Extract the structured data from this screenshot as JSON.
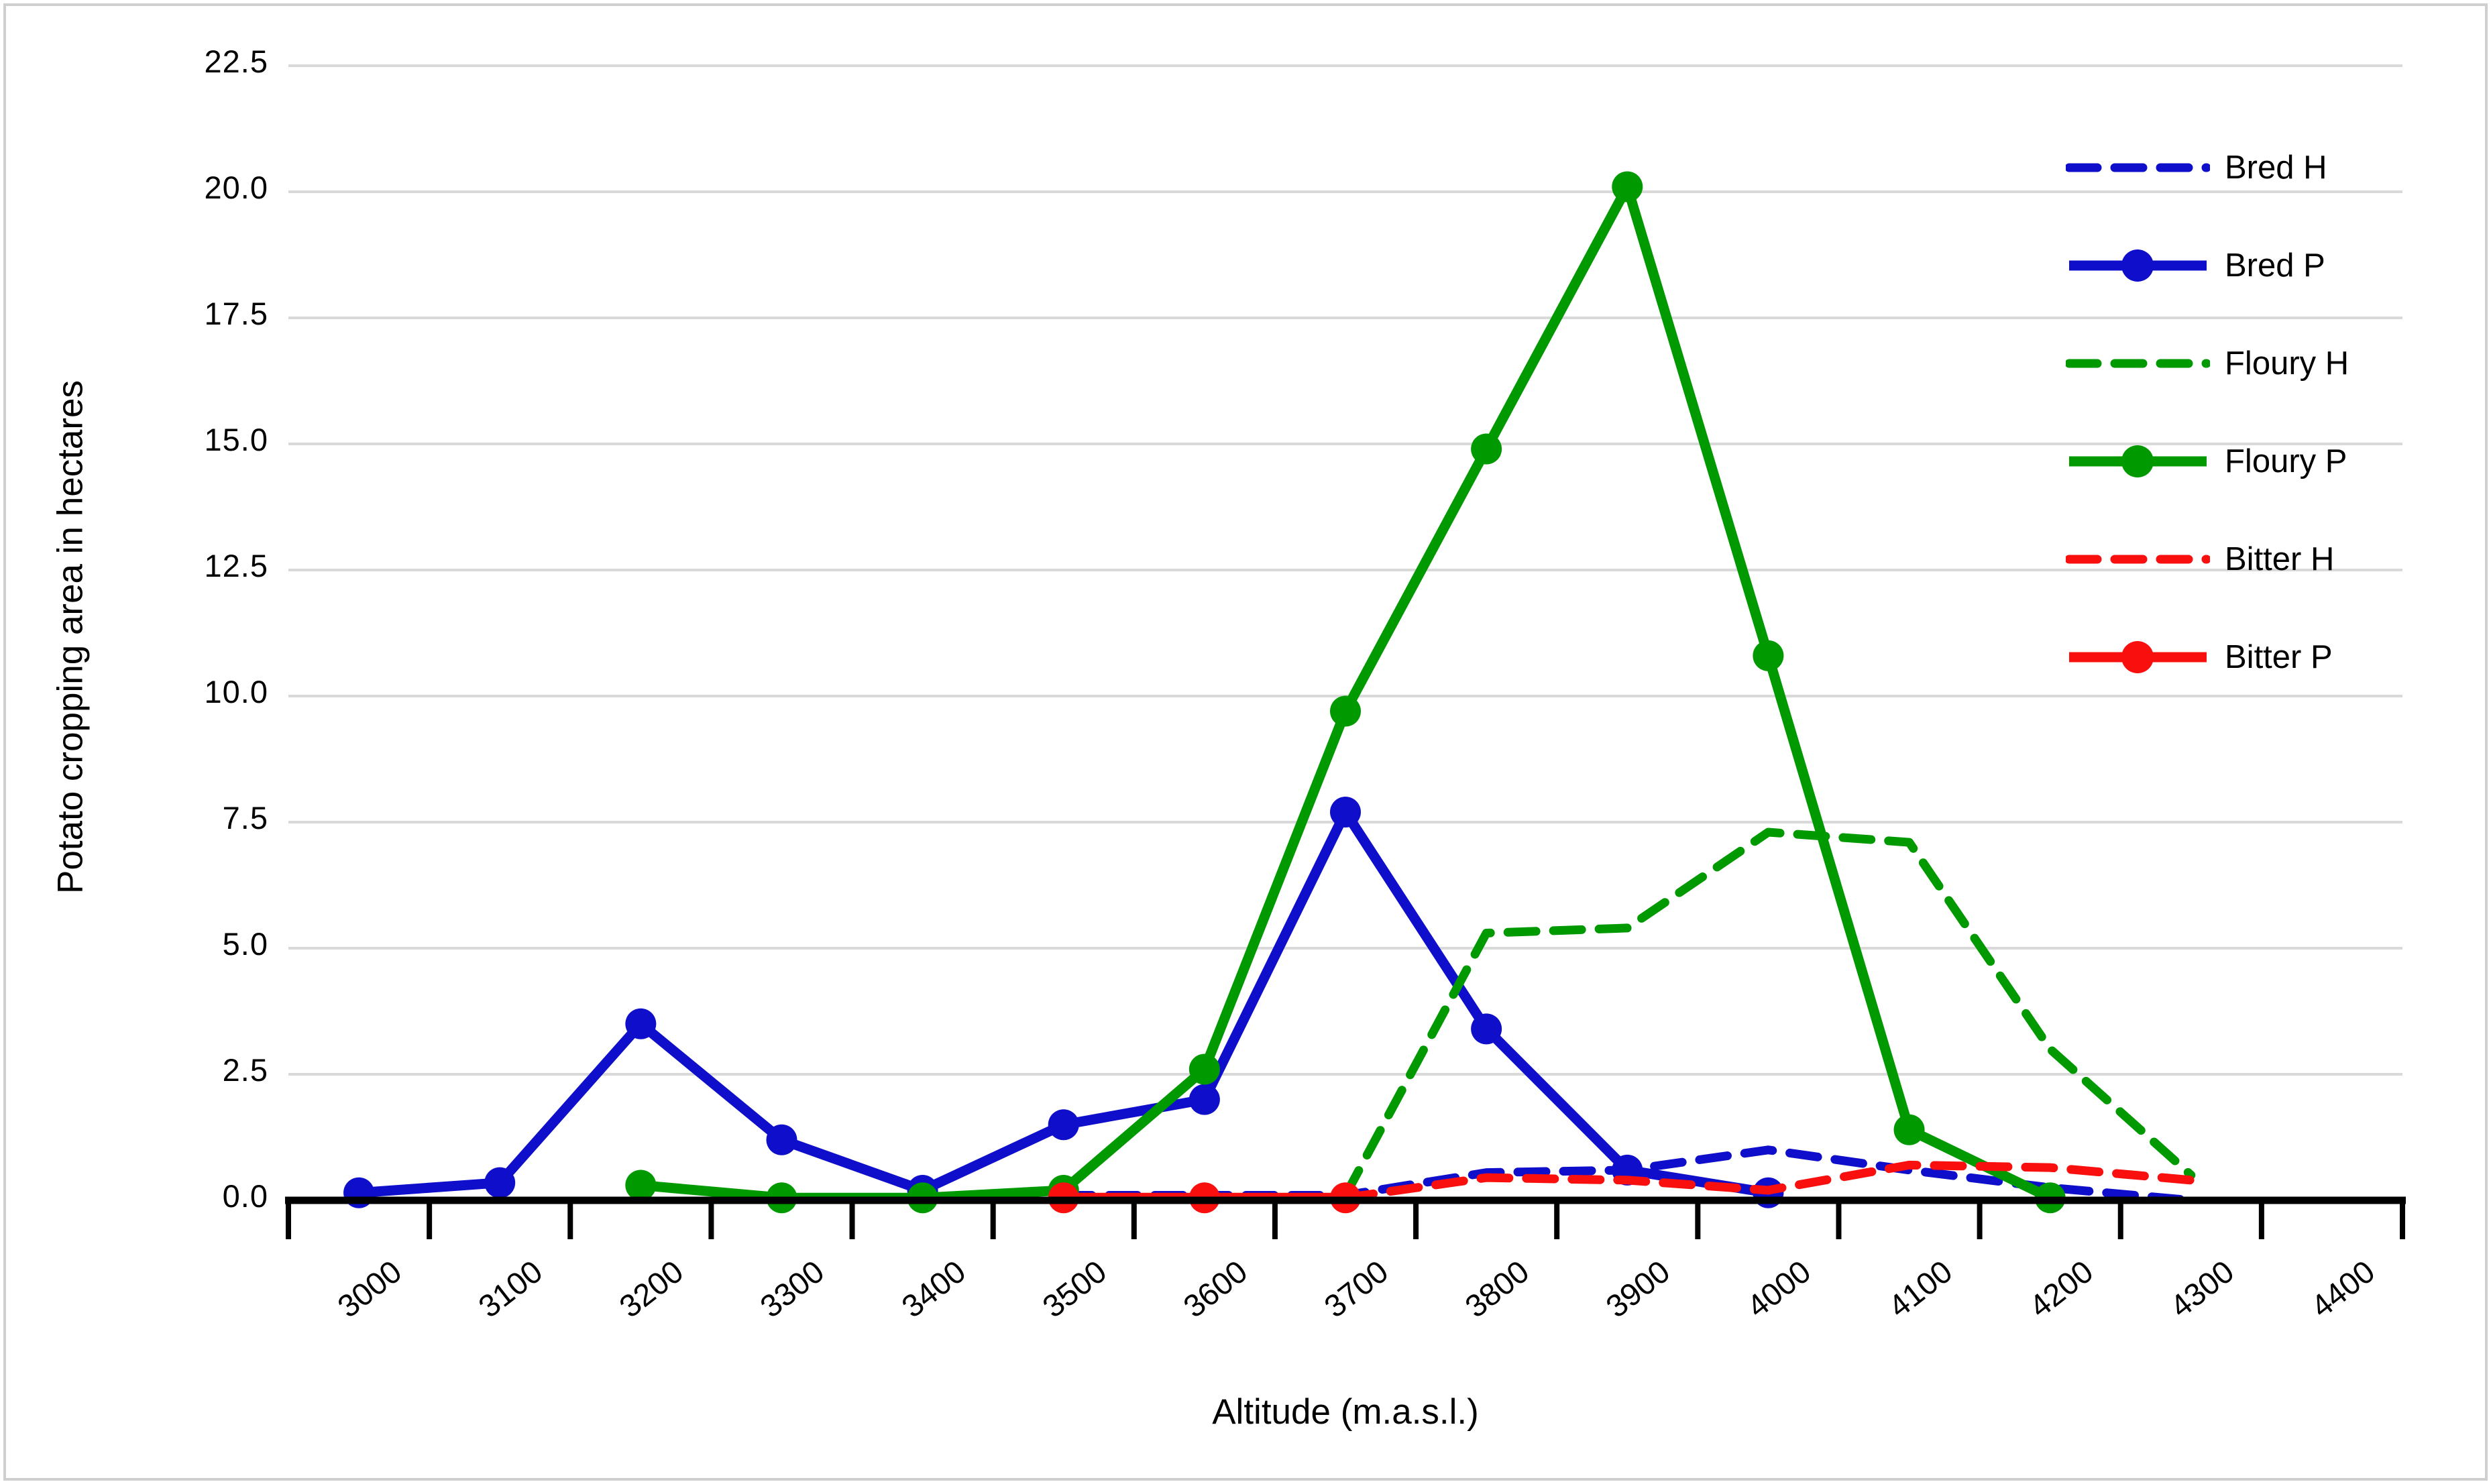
{
  "chart_data": {
    "type": "line",
    "title": "",
    "xlabel": "Altitude (m.a.s.l.)",
    "ylabel": "Potato cropping area in hectares",
    "categories": [
      "3000",
      "3100",
      "3200",
      "3300",
      "3400",
      "3500",
      "3600",
      "3700",
      "3800",
      "3900",
      "4000",
      "4100",
      "4200",
      "4300",
      "4400"
    ],
    "y_ticks": [
      "0.0",
      "2.5",
      "5.0",
      "7.5",
      "10.0",
      "12.5",
      "15.0",
      "17.5",
      "20.0",
      "22.5"
    ],
    "ylim": [
      0,
      22.5
    ],
    "grid": "horizontal",
    "legend_position": "right",
    "series": [
      {
        "name": "Bred H",
        "color": "#0f0fcb",
        "style": "dashed",
        "markers": false,
        "values": [
          null,
          null,
          null,
          null,
          null,
          0.1,
          0.1,
          0.1,
          0.55,
          0.6,
          1.0,
          0.6,
          0.25,
          0.0,
          null
        ]
      },
      {
        "name": "Bred P",
        "color": "#0f0fcb",
        "style": "solid",
        "markers": true,
        "values": [
          0.15,
          0.35,
          3.5,
          1.2,
          0.2,
          1.5,
          2.0,
          7.7,
          3.4,
          0.6,
          0.15,
          null,
          null,
          null,
          null
        ]
      },
      {
        "name": "Floury H",
        "color": "#009a00",
        "style": "dashed",
        "markers": false,
        "values": [
          null,
          null,
          null,
          null,
          null,
          null,
          null,
          0.1,
          5.3,
          5.4,
          7.3,
          7.1,
          3.0,
          0.5,
          null
        ]
      },
      {
        "name": "Floury P",
        "color": "#009a00",
        "style": "solid",
        "markers": true,
        "values": [
          null,
          null,
          0.3,
          0.05,
          0.05,
          0.2,
          2.6,
          9.7,
          14.9,
          20.1,
          10.8,
          1.4,
          0.05,
          null,
          null
        ]
      },
      {
        "name": "Bitter H",
        "color": "#fa0f0f",
        "style": "dashed",
        "markers": false,
        "values": [
          null,
          null,
          null,
          null,
          null,
          null,
          null,
          0.05,
          0.45,
          0.4,
          0.2,
          0.7,
          0.65,
          0.4,
          null
        ]
      },
      {
        "name": "Bitter P",
        "color": "#fa0f0f",
        "style": "solid",
        "markers": true,
        "values": [
          null,
          null,
          null,
          null,
          null,
          0.05,
          0.05,
          0.05,
          null,
          null,
          null,
          null,
          null,
          null,
          null
        ]
      }
    ]
  },
  "legend": {
    "items": [
      {
        "label": "Bred H"
      },
      {
        "label": "Bred P"
      },
      {
        "label": "Floury H"
      },
      {
        "label": "Floury P"
      },
      {
        "label": "Bitter H"
      },
      {
        "label": "Bitter P"
      }
    ]
  },
  "colors": {
    "blue": "#0f0fcb",
    "green": "#009a00",
    "red": "#fa0f0f",
    "gridline": "#d9d9d9",
    "axis": "#000000",
    "frame_border": "#cfcfcf"
  }
}
